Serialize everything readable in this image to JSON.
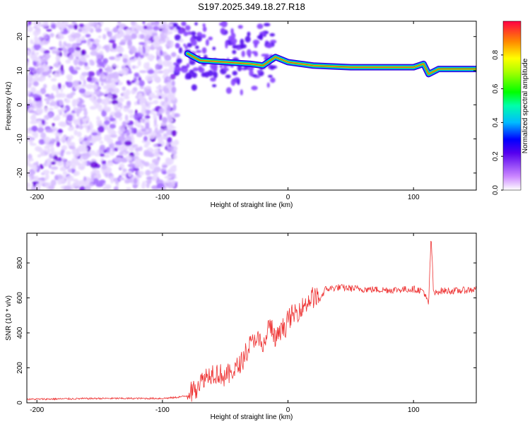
{
  "title": "S197.2025.349.18.27.R18",
  "chart_data": [
    {
      "type": "heatmap",
      "xlabel": "Height of straight line (km)",
      "ylabel": "Frequency (Hz)",
      "xlim": [
        -208,
        150
      ],
      "ylim": [
        -25,
        24.5
      ],
      "xticks": [
        -200,
        -100,
        0,
        100
      ],
      "yticks": [
        -20,
        -10,
        0,
        10,
        20
      ],
      "grid": false,
      "colorbar": {
        "label": "Normalized spectral amplitude",
        "range": [
          0,
          1
        ],
        "ticks": [
          0.0,
          0.2,
          0.4,
          0.6,
          0.8
        ],
        "tick_labels": [
          "0.0",
          "0.2",
          "0.4",
          "0.6",
          "0.8"
        ]
      },
      "noise_region_km": [
        -208,
        -90
      ],
      "signal_track": [
        {
          "x": -80,
          "freq": 15
        },
        {
          "x": -70,
          "freq": 13
        },
        {
          "x": -50,
          "freq": 12.5
        },
        {
          "x": -30,
          "freq": 12
        },
        {
          "x": -20,
          "freq": 11.5
        },
        {
          "x": -10,
          "freq": 14
        },
        {
          "x": 0,
          "freq": 12.5
        },
        {
          "x": 20,
          "freq": 11.5
        },
        {
          "x": 50,
          "freq": 11
        },
        {
          "x": 100,
          "freq": 11
        },
        {
          "x": 108,
          "freq": 12
        },
        {
          "x": 112,
          "freq": 9
        },
        {
          "x": 120,
          "freq": 10.5
        },
        {
          "x": 150,
          "freq": 10.5
        }
      ]
    },
    {
      "type": "line",
      "xlabel": "Height of straight line (km)",
      "ylabel": "SNR (10 * v/v)",
      "xlim": [
        -208,
        150
      ],
      "ylim": [
        0,
        970
      ],
      "xticks": [
        -200,
        -100,
        0,
        100
      ],
      "yticks": [
        0,
        200,
        400,
        600,
        800
      ],
      "grid": false,
      "series": [
        {
          "name": "SNR",
          "color": "#ee3333",
          "x": [
            -208,
            -150,
            -100,
            -90,
            -80,
            -70,
            -60,
            -50,
            -40,
            -30,
            -25,
            -20,
            -15,
            -10,
            0,
            10,
            20,
            25,
            30,
            40,
            60,
            80,
            100,
            108,
            112,
            114,
            116,
            120,
            135,
            150
          ],
          "values": [
            20,
            25,
            25,
            30,
            40,
            120,
            180,
            150,
            200,
            330,
            380,
            300,
            450,
            360,
            470,
            540,
            610,
            590,
            650,
            660,
            650,
            645,
            650,
            640,
            560,
            960,
            620,
            640,
            640,
            650
          ]
        }
      ]
    }
  ]
}
